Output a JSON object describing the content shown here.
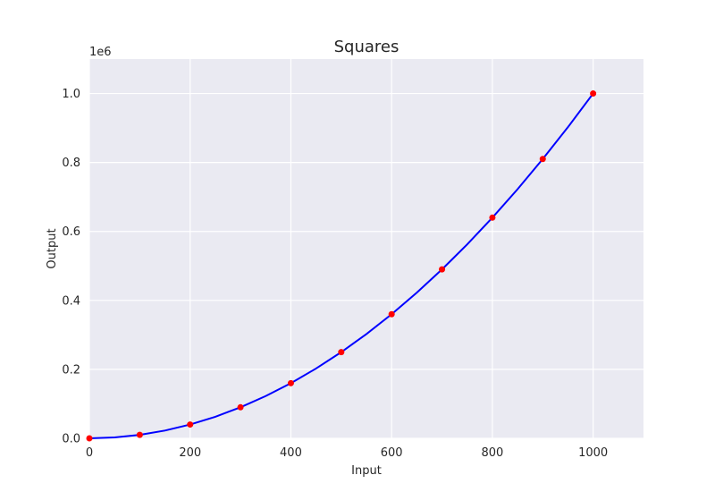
{
  "chart_data": {
    "type": "line",
    "title": "Squares",
    "xlabel": "Input",
    "ylabel": "Output",
    "y_offset_label": "1e6",
    "xlim": [
      0,
      1100
    ],
    "ylim": [
      0,
      1100000
    ],
    "x_ticks": [
      0,
      200,
      400,
      600,
      800,
      1000
    ],
    "x_tick_labels": [
      "0",
      "200",
      "400",
      "600",
      "800",
      "1000"
    ],
    "y_ticks": [
      0,
      200000,
      400000,
      600000,
      800000,
      1000000
    ],
    "y_tick_labels": [
      "0.0",
      "0.2",
      "0.4",
      "0.6",
      "0.8",
      "1.0"
    ],
    "grid": true,
    "background": "#eaeaf2",
    "series": [
      {
        "style": "line",
        "color": "#0000ff",
        "x": [
          0,
          50,
          100,
          150,
          200,
          250,
          300,
          350,
          400,
          450,
          500,
          550,
          600,
          650,
          700,
          750,
          800,
          850,
          900,
          950,
          1000
        ],
        "y": [
          0,
          2500,
          10000,
          22500,
          40000,
          62500,
          90000,
          122500,
          160000,
          202500,
          250000,
          302500,
          360000,
          422500,
          490000,
          562500,
          640000,
          722500,
          810000,
          902500,
          1000000
        ]
      },
      {
        "style": "scatter",
        "color": "#ff0000",
        "x": [
          0,
          100,
          200,
          300,
          400,
          500,
          600,
          700,
          800,
          900,
          1000
        ],
        "y": [
          0,
          10000,
          40000,
          90000,
          160000,
          250000,
          360000,
          490000,
          640000,
          810000,
          1000000
        ]
      }
    ]
  }
}
